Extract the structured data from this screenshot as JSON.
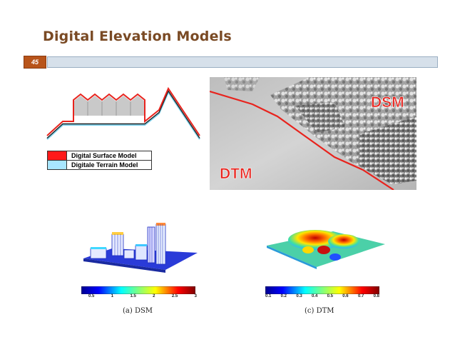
{
  "slide": {
    "title": "Digital Elevation Models",
    "page_number": "45"
  },
  "legend": {
    "items": [
      {
        "label": "Digital Surface Model",
        "color": "#ff1a1a"
      },
      {
        "label": "Digitale Terrain Model",
        "color": "#a8e6ff"
      }
    ]
  },
  "map": {
    "dsm_label": "DSM",
    "dtm_label": "DTM",
    "label_color": "#e8231d"
  },
  "panels": {
    "dsm": {
      "caption": "(a) DSM",
      "ticks": [
        "0.5",
        "1",
        "1.5",
        "2",
        "2.5",
        "3"
      ]
    },
    "dtm": {
      "caption": "(c) DTM",
      "ticks": [
        "0.1",
        "0.2",
        "0.3",
        "0.4",
        "0.5",
        "0.6",
        "0.7",
        "0.8"
      ]
    }
  },
  "colors": {
    "title": "#7a4a24",
    "accent": "#b8541a",
    "bar": "#d6e0ea"
  }
}
